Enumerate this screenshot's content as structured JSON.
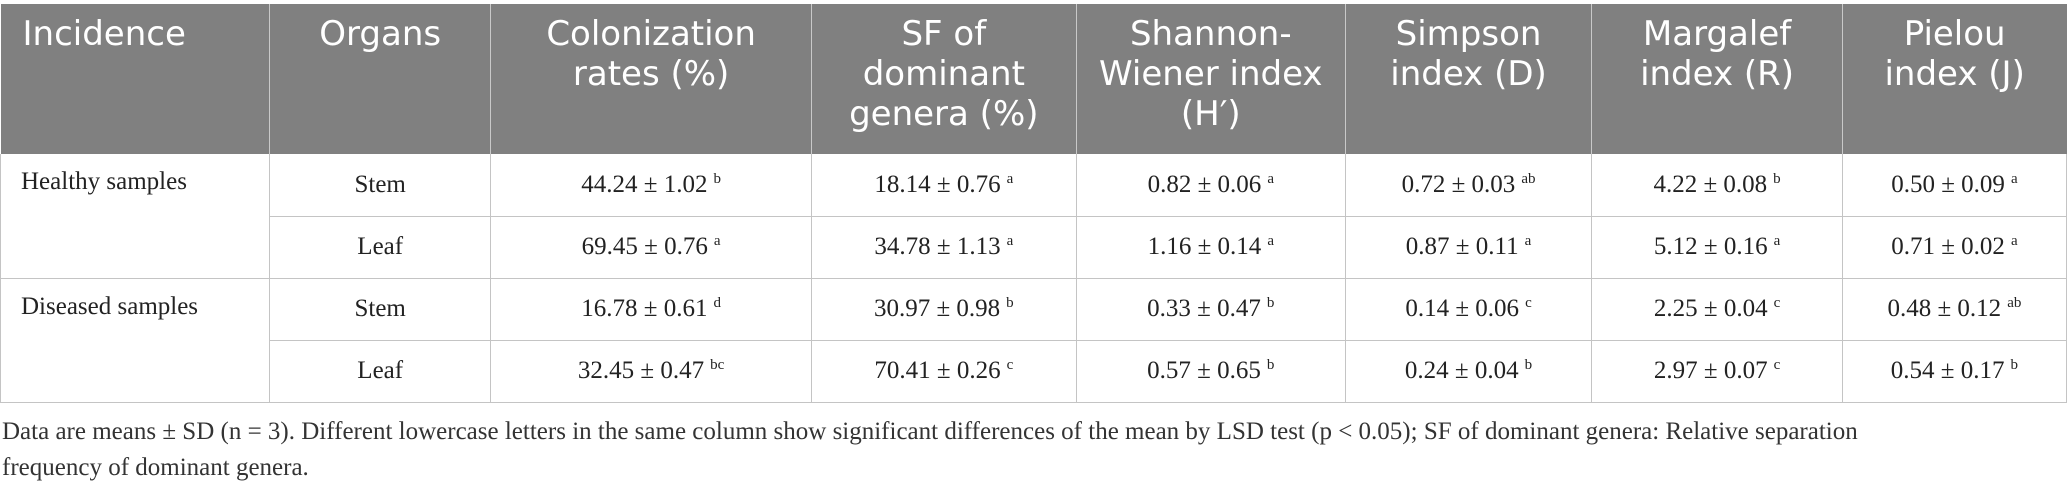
{
  "table": {
    "headers": [
      [
        "Incidence"
      ],
      [
        "Organs"
      ],
      [
        "Colonization",
        "rates (%)"
      ],
      [
        "SF of",
        "dominant",
        "genera (%)"
      ],
      [
        "Shannon-",
        "Wiener index",
        "(H′)"
      ],
      [
        "Simpson",
        "index (D)"
      ],
      [
        "Margalef",
        "index (R)"
      ],
      [
        "Pielou",
        "index (J)"
      ]
    ],
    "groups": [
      {
        "incidence": "Healthy samples",
        "rows": [
          {
            "organ": "Stem",
            "cells": [
              {
                "v": "44.24 ± 1.02",
                "s": "b"
              },
              {
                "v": "18.14 ± 0.76",
                "s": "a"
              },
              {
                "v": "0.82 ± 0.06",
                "s": "a"
              },
              {
                "v": "0.72 ± 0.03",
                "s": "ab"
              },
              {
                "v": "4.22 ± 0.08",
                "s": "b"
              },
              {
                "v": "0.50 ± 0.09",
                "s": "a"
              }
            ]
          },
          {
            "organ": "Leaf",
            "cells": [
              {
                "v": "69.45 ± 0.76",
                "s": "a"
              },
              {
                "v": "34.78 ± 1.13",
                "s": "a"
              },
              {
                "v": "1.16 ± 0.14",
                "s": "a"
              },
              {
                "v": "0.87 ± 0.11",
                "s": "a"
              },
              {
                "v": "5.12 ± 0.16",
                "s": "a"
              },
              {
                "v": "0.71 ± 0.02",
                "s": "a"
              }
            ]
          }
        ]
      },
      {
        "incidence": "Diseased samples",
        "rows": [
          {
            "organ": "Stem",
            "cells": [
              {
                "v": "16.78 ± 0.61",
                "s": "d"
              },
              {
                "v": "30.97 ± 0.98",
                "s": "b"
              },
              {
                "v": "0.33 ± 0.47",
                "s": "b"
              },
              {
                "v": "0.14 ± 0.06",
                "s": "c"
              },
              {
                "v": "2.25 ± 0.04",
                "s": "c"
              },
              {
                "v": "0.48 ± 0.12",
                "s": "ab"
              }
            ]
          },
          {
            "organ": "Leaf",
            "cells": [
              {
                "v": "32.45 ± 0.47",
                "s": "bc"
              },
              {
                "v": "70.41 ± 0.26",
                "s": "c"
              },
              {
                "v": "0.57 ± 0.65",
                "s": "b"
              },
              {
                "v": "0.24 ± 0.04",
                "s": "b"
              },
              {
                "v": "2.97 ± 0.07",
                "s": "c"
              },
              {
                "v": "0.54 ± 0.17",
                "s": "b"
              }
            ]
          }
        ]
      }
    ]
  },
  "footnote": {
    "line1": "Data are means ± SD (n = 3). Different lowercase letters in the same column show significant differences of the mean by LSD test (p < 0.05); SF of dominant genera: Relative separation",
    "line2": "frequency of dominant genera."
  }
}
